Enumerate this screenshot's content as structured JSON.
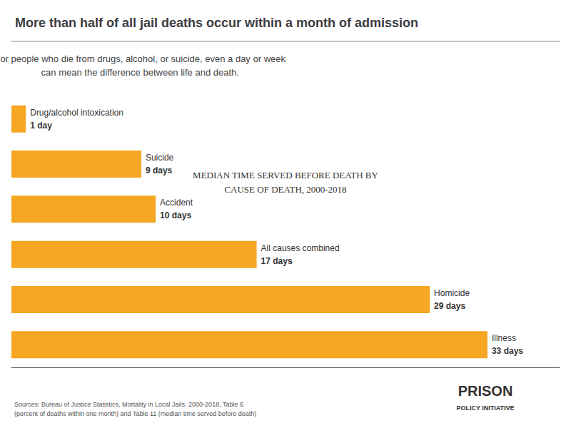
{
  "chart_data": {
    "type": "bar",
    "orientation": "horizontal",
    "title": "More than half of all jail deaths occur within a month of admission",
    "subtitle": "For people who die from drugs, alcohol, or suicide, even a day or week\ncan mean the difference between life and death.",
    "annotations": [
      "MEDIAN TIME SERVED BEFORE DEATH BY\nCAUSE OF DEATH, 2000-2018",
      "Sources: Bureau of Justice Statistics, Mortality in Local Jails, 2000-2018, Table 6\n(percent of deaths within one month) and Table 11 (median time served before death)",
      "PRISON",
      "POLICY INITIATIVE"
    ],
    "categories": [
      "Drug/alcohol intoxication",
      "Suicide",
      "Accident",
      "All causes combined",
      "Homicide",
      "Illness"
    ],
    "values": [
      1,
      9,
      10,
      17,
      29,
      33
    ],
    "value_labels": [
      "1 day",
      "9 days",
      "10 days",
      "17 days",
      "29 days",
      "33 days"
    ],
    "color": "#F5A623",
    "xlim": [
      0,
      38
    ],
    "data_labels": true,
    "tick_labels": false,
    "grid": false
  }
}
